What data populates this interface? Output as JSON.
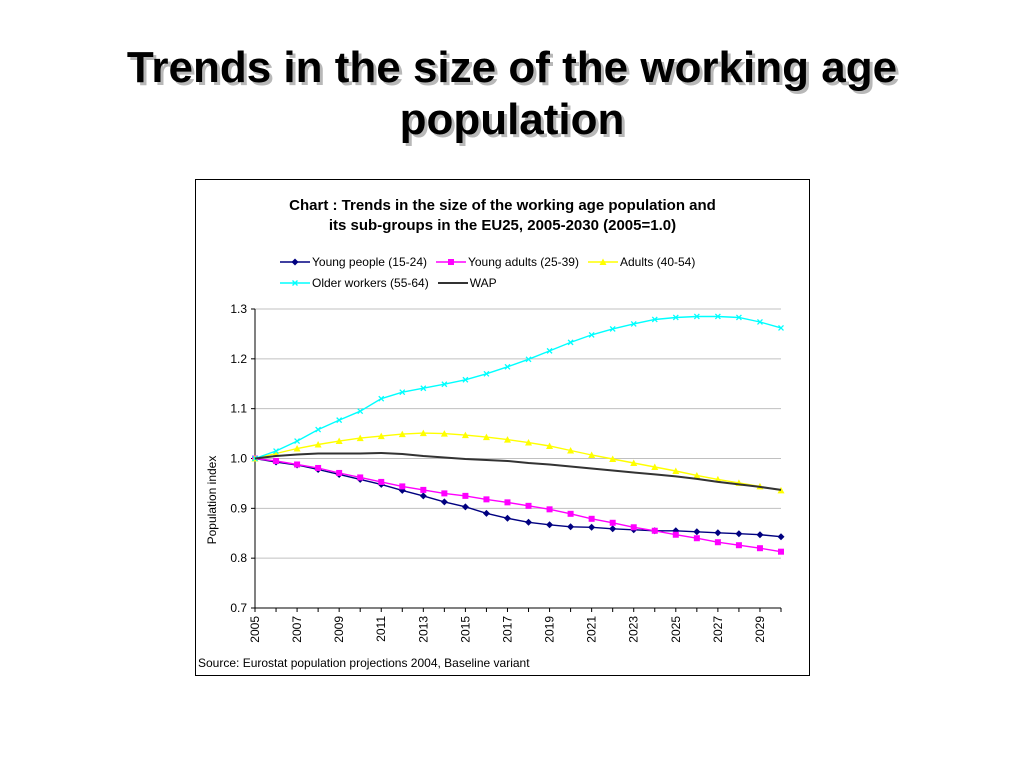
{
  "slide": {
    "title_line1": "Trends in the size of the working age",
    "title_line2": "population"
  },
  "chart_data": {
    "type": "line",
    "title_line1": "Chart  : Trends in the size of the working age population and",
    "title_line2": "its sub-groups in the EU25, 2005-2030 (2005=1.0)",
    "ylabel": "Population index",
    "xlabel": "",
    "source": "Source: Eurostat population projections 2004, Baseline variant",
    "ylim": [
      0.7,
      1.3
    ],
    "yticks": [
      "0.7",
      "0.8",
      "0.9",
      "1.0",
      "1.1",
      "1.2",
      "1.3"
    ],
    "xticks": [
      "2005",
      "2007",
      "2009",
      "2011",
      "2013",
      "2015",
      "2017",
      "2019",
      "2021",
      "2023",
      "2025",
      "2027",
      "2029"
    ],
    "grid": "horizontal",
    "legend_position": "top",
    "x": [
      2005,
      2006,
      2007,
      2008,
      2009,
      2010,
      2011,
      2012,
      2013,
      2014,
      2015,
      2016,
      2017,
      2018,
      2019,
      2020,
      2021,
      2022,
      2023,
      2024,
      2025,
      2026,
      2027,
      2028,
      2029,
      2030
    ],
    "series": [
      {
        "name": "Young people (15-24)",
        "color": "#000080",
        "marker": "diamond",
        "values": [
          1.0,
          0.993,
          0.987,
          0.978,
          0.968,
          0.958,
          0.948,
          0.936,
          0.925,
          0.913,
          0.903,
          0.89,
          0.88,
          0.872,
          0.867,
          0.863,
          0.862,
          0.859,
          0.857,
          0.855,
          0.855,
          0.853,
          0.851,
          0.849,
          0.847,
          0.843
        ]
      },
      {
        "name": "Young adults (25-39)",
        "color": "#ff00ff",
        "marker": "square",
        "values": [
          1.0,
          0.995,
          0.988,
          0.981,
          0.971,
          0.962,
          0.953,
          0.944,
          0.937,
          0.93,
          0.925,
          0.918,
          0.912,
          0.905,
          0.898,
          0.889,
          0.879,
          0.871,
          0.862,
          0.855,
          0.847,
          0.84,
          0.832,
          0.826,
          0.82,
          0.813
        ]
      },
      {
        "name": "Adults (40-54)",
        "color": "#ffff00",
        "marker": "triangle",
        "values": [
          1.0,
          1.01,
          1.02,
          1.028,
          1.035,
          1.041,
          1.045,
          1.049,
          1.051,
          1.05,
          1.047,
          1.043,
          1.038,
          1.032,
          1.025,
          1.016,
          1.007,
          0.999,
          0.991,
          0.983,
          0.975,
          0.966,
          0.958,
          0.951,
          0.944,
          0.936
        ]
      },
      {
        "name": "Older workers (55-64)",
        "color": "#00ffff",
        "marker": "x",
        "values": [
          1.0,
          1.015,
          1.035,
          1.058,
          1.077,
          1.095,
          1.12,
          1.133,
          1.141,
          1.149,
          1.158,
          1.17,
          1.184,
          1.199,
          1.216,
          1.233,
          1.248,
          1.26,
          1.27,
          1.279,
          1.283,
          1.285,
          1.285,
          1.283,
          1.274,
          1.262
        ]
      },
      {
        "name": "WAP",
        "color": "#333333",
        "marker": "none",
        "values": [
          1.0,
          1.005,
          1.008,
          1.01,
          1.01,
          1.01,
          1.011,
          1.009,
          1.005,
          1.002,
          0.999,
          0.997,
          0.995,
          0.991,
          0.988,
          0.984,
          0.98,
          0.976,
          0.972,
          0.968,
          0.964,
          0.959,
          0.953,
          0.948,
          0.943,
          0.937
        ]
      }
    ]
  }
}
